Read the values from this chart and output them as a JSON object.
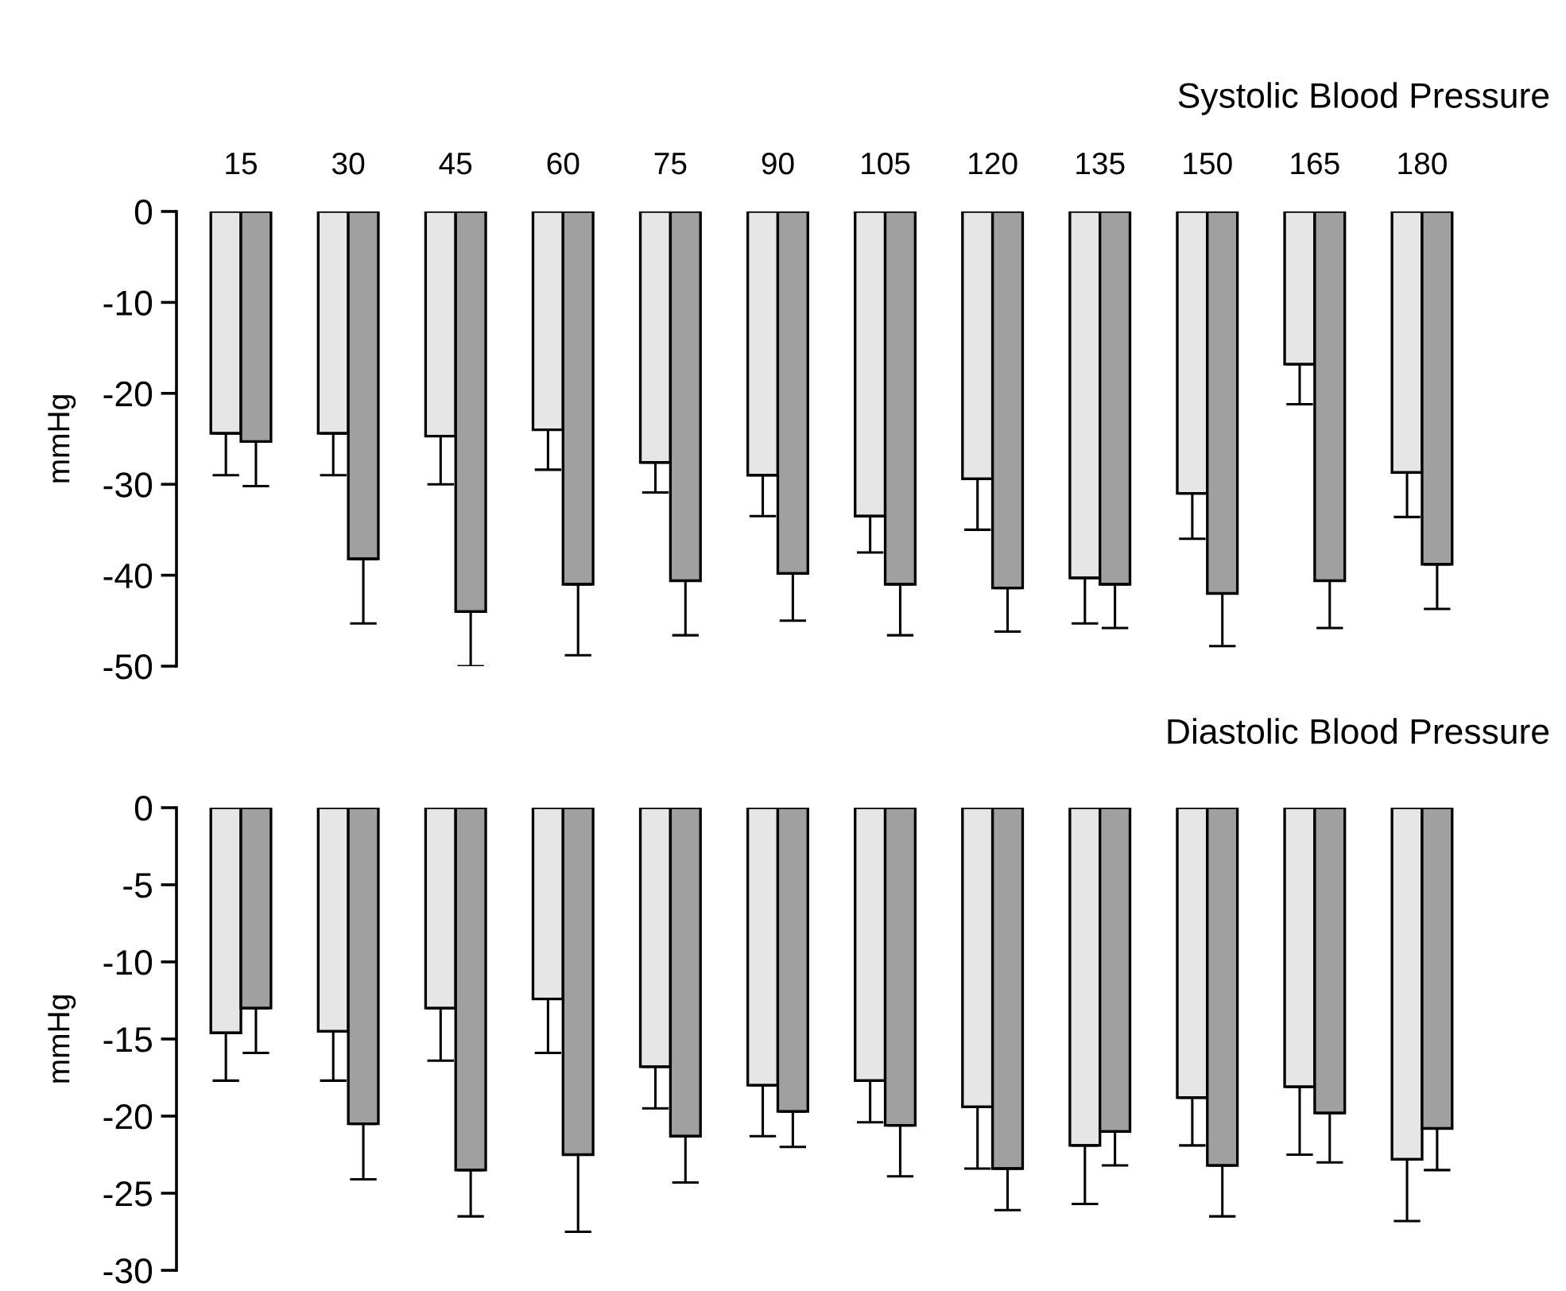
{
  "chart_data": [
    {
      "type": "bar",
      "title": "Systolic Blood Pressure",
      "ylabel": "mmHg",
      "categories": [
        "15",
        "30",
        "45",
        "60",
        "75",
        "90",
        "105",
        "120",
        "135",
        "150",
        "165",
        "180"
      ],
      "ylim": [
        -50,
        0
      ],
      "yticks": [
        -50,
        -40,
        -30,
        -20,
        -10,
        0
      ],
      "grid": false,
      "legend": false,
      "series": [
        {
          "color": "#e6e6e6",
          "values": [
            -24.4,
            -24.4,
            -24.7,
            -24.0,
            -27.6,
            -29.0,
            -33.5,
            -29.4,
            -40.3,
            -31.0,
            -16.8,
            -28.7
          ],
          "errors": [
            [
              -29.0,
              -24.4
            ],
            [
              -29.0,
              -24.4
            ],
            [
              -30.0,
              -24.7
            ],
            [
              -28.4,
              -24.0
            ],
            [
              -30.9,
              -27.6
            ],
            [
              -33.5,
              -29.0
            ],
            [
              -37.5,
              -33.5
            ],
            [
              -35.0,
              -29.4
            ],
            [
              -45.3,
              -40.3
            ],
            [
              -36.0,
              -31.0
            ],
            [
              -21.2,
              -16.8
            ],
            [
              -33.6,
              -28.7
            ]
          ]
        },
        {
          "color": "#a0a0a0",
          "values": [
            -25.3,
            -38.2,
            -44.0,
            -41.0,
            -40.6,
            -39.8,
            -41.0,
            -41.4,
            -41.0,
            -42.0,
            -40.6,
            -38.8
          ],
          "errors": [
            [
              -30.2,
              -25.3
            ],
            [
              -45.3,
              -38.2
            ],
            [
              -50.0,
              -44.0
            ],
            [
              -48.8,
              -41.0
            ],
            [
              -46.6,
              -40.6
            ],
            [
              -45.0,
              -39.8
            ],
            [
              -46.6,
              -41.0
            ],
            [
              -46.2,
              -41.4
            ],
            [
              -45.8,
              -41.0
            ],
            [
              -47.8,
              -42.0
            ],
            [
              -45.8,
              -40.6
            ],
            [
              -43.7,
              -38.8
            ]
          ]
        }
      ]
    },
    {
      "type": "bar",
      "title": "Diastolic Blood Pressure",
      "ylabel": "mmHg",
      "categories": [
        "15",
        "30",
        "45",
        "60",
        "75",
        "90",
        "105",
        "120",
        "135",
        "150",
        "165",
        "180"
      ],
      "tick_labels": "y",
      "ylim": [
        -30,
        0
      ],
      "yticks": [
        -30,
        -25,
        -20,
        -15,
        -10,
        -5,
        0
      ],
      "grid": false,
      "legend": false,
      "series": [
        {
          "color": "#e6e6e6",
          "values": [
            -14.6,
            -14.5,
            -13.0,
            -12.4,
            -16.8,
            -18.0,
            -17.7,
            -19.4,
            -21.9,
            -18.8,
            -18.1,
            -22.8
          ],
          "errors": [
            [
              -17.7,
              -14.6
            ],
            [
              -17.7,
              -14.5
            ],
            [
              -16.4,
              -13.0
            ],
            [
              -15.9,
              -12.4
            ],
            [
              -19.5,
              -16.8
            ],
            [
              -21.3,
              -18.0
            ],
            [
              -20.4,
              -17.7
            ],
            [
              -23.4,
              -19.4
            ],
            [
              -25.7,
              -21.9
            ],
            [
              -21.9,
              -18.8
            ],
            [
              -22.5,
              -18.1
            ],
            [
              -26.8,
              -22.8
            ]
          ]
        },
        {
          "color": "#a0a0a0",
          "values": [
            -13.0,
            -20.5,
            -23.5,
            -22.5,
            -21.3,
            -19.7,
            -20.6,
            -23.4,
            -21.0,
            -23.2,
            -19.8,
            -20.8
          ],
          "errors": [
            [
              -15.9,
              -13.0
            ],
            [
              -24.1,
              -20.5
            ],
            [
              -26.5,
              -23.5
            ],
            [
              -27.5,
              -22.5
            ],
            [
              -24.3,
              -21.3
            ],
            [
              -22.0,
              -19.7
            ],
            [
              -23.9,
              -20.6
            ],
            [
              -26.1,
              -23.4
            ],
            [
              -23.2,
              -21.0
            ],
            [
              -26.5,
              -23.2
            ],
            [
              -23.0,
              -19.8
            ],
            [
              -23.5,
              -20.8
            ]
          ]
        }
      ]
    }
  ]
}
